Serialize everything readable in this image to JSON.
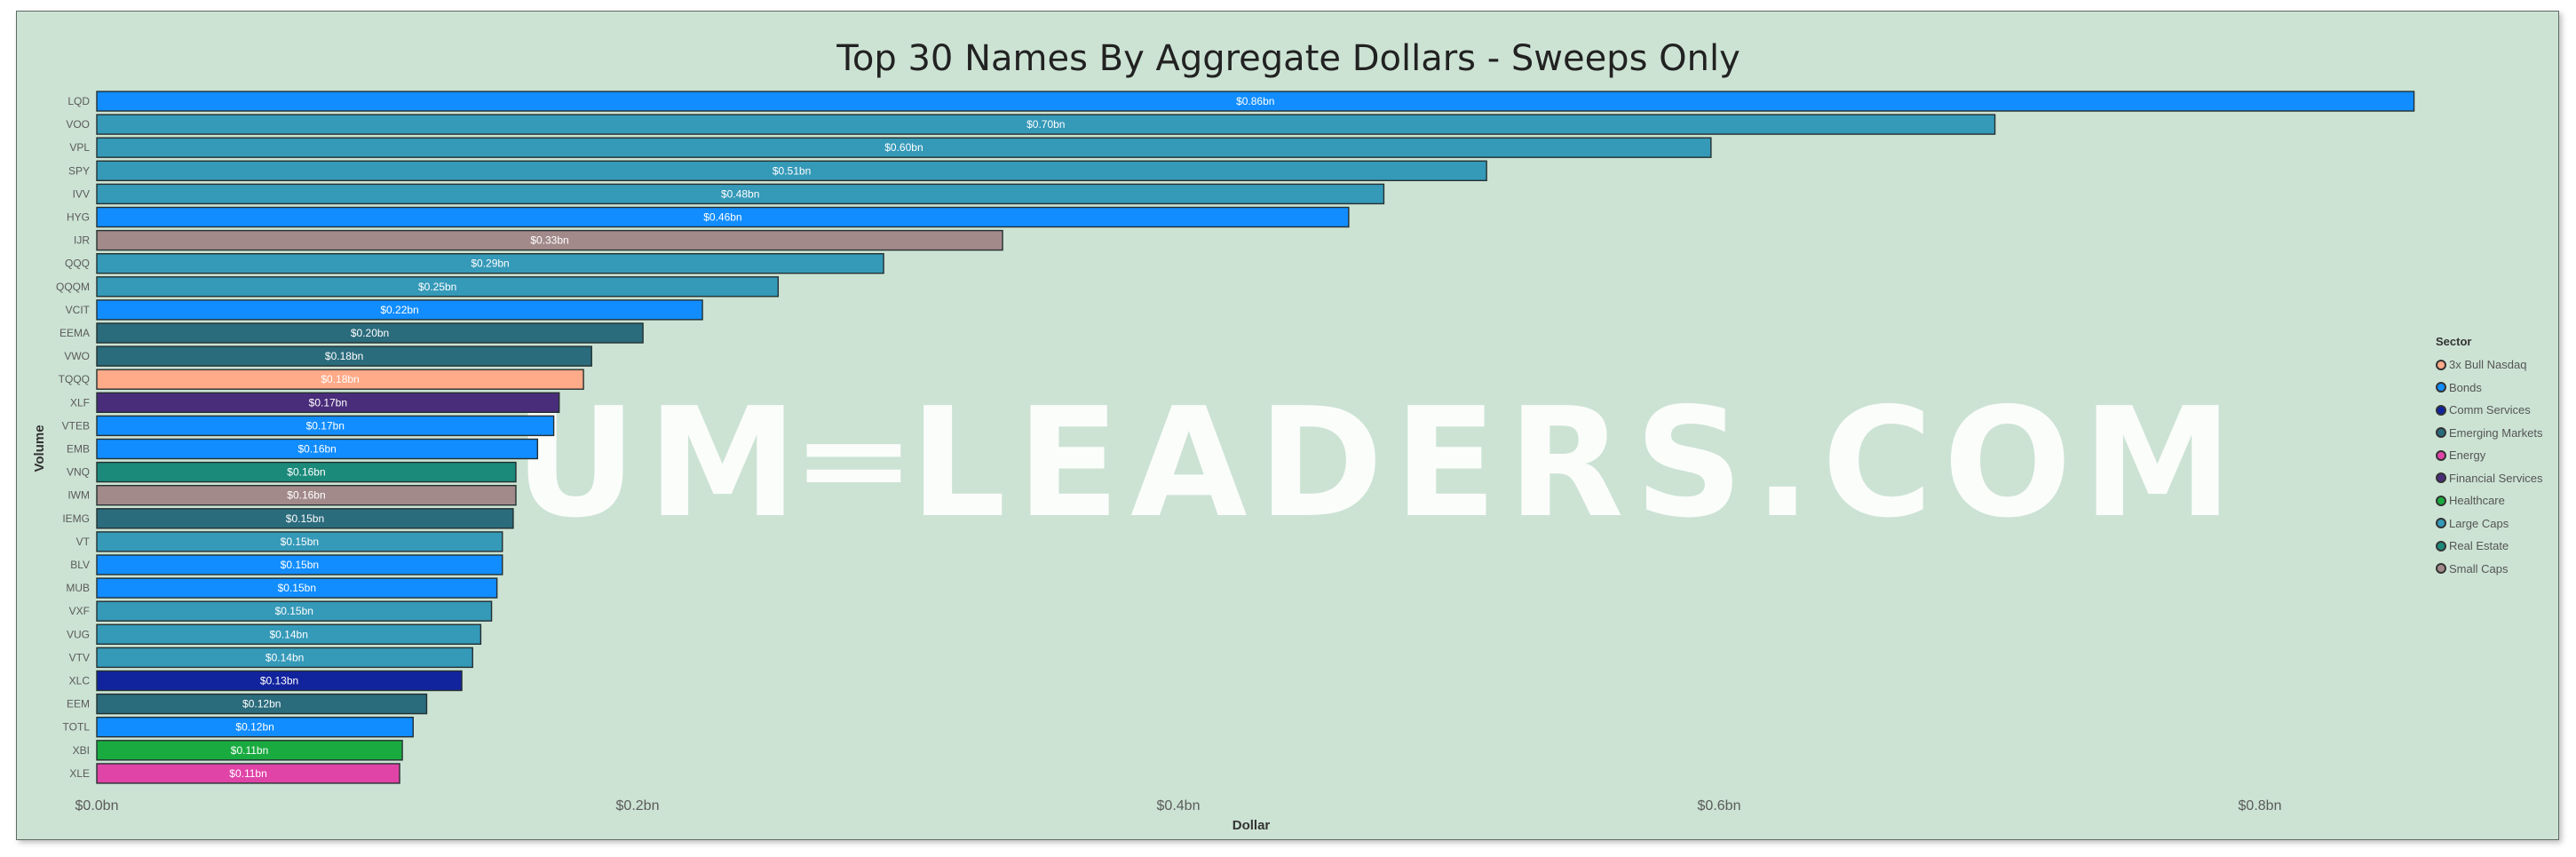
{
  "chart_data": {
    "type": "bar",
    "orientation": "horizontal",
    "title": "Top 30 Names By Aggregate Dollars - Sweeps Only",
    "xlabel": "Dollar",
    "ylabel": "Volume",
    "xlim": [
      0,
      0.9
    ],
    "xticks": [
      {
        "value": 0,
        "label": "$0.0bn"
      },
      {
        "value": 0.2,
        "label": "$0.2bn"
      },
      {
        "value": 0.4,
        "label": "$0.4bn"
      },
      {
        "value": 0.6,
        "label": "$0.6bn"
      },
      {
        "value": 0.8,
        "label": "$0.8bn"
      }
    ],
    "grid": false,
    "legend_position": "right",
    "categories": [
      "LQD",
      "VOO",
      "VPL",
      "SPY",
      "IVV",
      "HYG",
      "IJR",
      "QQQ",
      "QQQM",
      "VCIT",
      "EEMA",
      "VWO",
      "TQQQ",
      "XLF",
      "VTEB",
      "EMB",
      "VNQ",
      "IWM",
      "IEMG",
      "VT",
      "BLV",
      "MUB",
      "VXF",
      "VUG",
      "VTV",
      "XLC",
      "EEM",
      "TOTL",
      "XBI",
      "XLE"
    ],
    "values": [
      0.857,
      0.702,
      0.597,
      0.514,
      0.476,
      0.463,
      0.335,
      0.291,
      0.252,
      0.224,
      0.202,
      0.183,
      0.18,
      0.171,
      0.169,
      0.163,
      0.155,
      0.155,
      0.154,
      0.15,
      0.15,
      0.148,
      0.146,
      0.142,
      0.139,
      0.135,
      0.122,
      0.117,
      0.113,
      0.112
    ],
    "data_labels": [
      "$0.86bn",
      "$0.70bn",
      "$0.60bn",
      "$0.51bn",
      "$0.48bn",
      "$0.46bn",
      "$0.33bn",
      "$0.29bn",
      "$0.25bn",
      "$0.22bn",
      "$0.20bn",
      "$0.18bn",
      "$0.18bn",
      "$0.17bn",
      "$0.17bn",
      "$0.16bn",
      "$0.16bn",
      "$0.16bn",
      "$0.15bn",
      "$0.15bn",
      "$0.15bn",
      "$0.15bn",
      "$0.15bn",
      "$0.14bn",
      "$0.14bn",
      "$0.13bn",
      "$0.12bn",
      "$0.12bn",
      "$0.11bn",
      "$0.11bn"
    ],
    "sectors": [
      "Bonds",
      "Large Caps",
      "Large Caps",
      "Large Caps",
      "Large Caps",
      "Bonds",
      "Small Caps",
      "Large Caps",
      "Large Caps",
      "Bonds",
      "Emerging Markets",
      "Emerging Markets",
      "3x Bull Nasdaq",
      "Financial Services",
      "Bonds",
      "Bonds",
      "Real Estate",
      "Small Caps",
      "Emerging Markets",
      "Large Caps",
      "Bonds",
      "Bonds",
      "Large Caps",
      "Large Caps",
      "Large Caps",
      "Comm Services",
      "Emerging Markets",
      "Bonds",
      "Healthcare",
      "Energy"
    ],
    "legend": {
      "title": "Sector",
      "items": [
        {
          "name": "3x Bull Nasdaq",
          "color": "#ffaa88"
        },
        {
          "name": "Bonds",
          "color": "#118dff"
        },
        {
          "name": "Comm Services",
          "color": "#12239e"
        },
        {
          "name": "Emerging Markets",
          "color": "#2a6b7c"
        },
        {
          "name": "Energy",
          "color": "#e044a7"
        },
        {
          "name": "Financial Services",
          "color": "#4a2d7a"
        },
        {
          "name": "Healthcare",
          "color": "#1aab40"
        },
        {
          "name": "Large Caps",
          "color": "#3599b8"
        },
        {
          "name": "Real Estate",
          "color": "#1b8a7a"
        },
        {
          "name": "Small Caps",
          "color": "#a38a8a"
        }
      ]
    }
  },
  "watermark": "UM═LEADERS.COM"
}
